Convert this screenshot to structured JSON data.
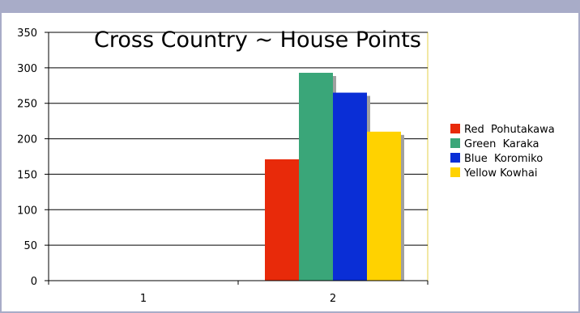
{
  "chart_data": {
    "type": "bar",
    "title": "Cross Country ~ House Points",
    "categories": [
      "1",
      "2"
    ],
    "series": [
      {
        "name": "Red  Pohutakawa",
        "color": "#e82a0a",
        "values": [
          0,
          171
        ]
      },
      {
        "name": "Green  Karaka",
        "color": "#3aa679",
        "values": [
          0,
          293
        ]
      },
      {
        "name": "Blue  Koromiko",
        "color": "#0a2ed6",
        "values": [
          0,
          265
        ]
      },
      {
        "name": "Yellow Kowhai",
        "color": "#ffd200",
        "values": [
          0,
          210
        ]
      }
    ],
    "ylim": [
      0,
      350
    ],
    "yticks": [
      0,
      50,
      100,
      150,
      200,
      250,
      300,
      350
    ],
    "grid": true,
    "legend": "right",
    "plot_border_color": "#e6d24a",
    "shadow_color": "#a0a0a0"
  }
}
